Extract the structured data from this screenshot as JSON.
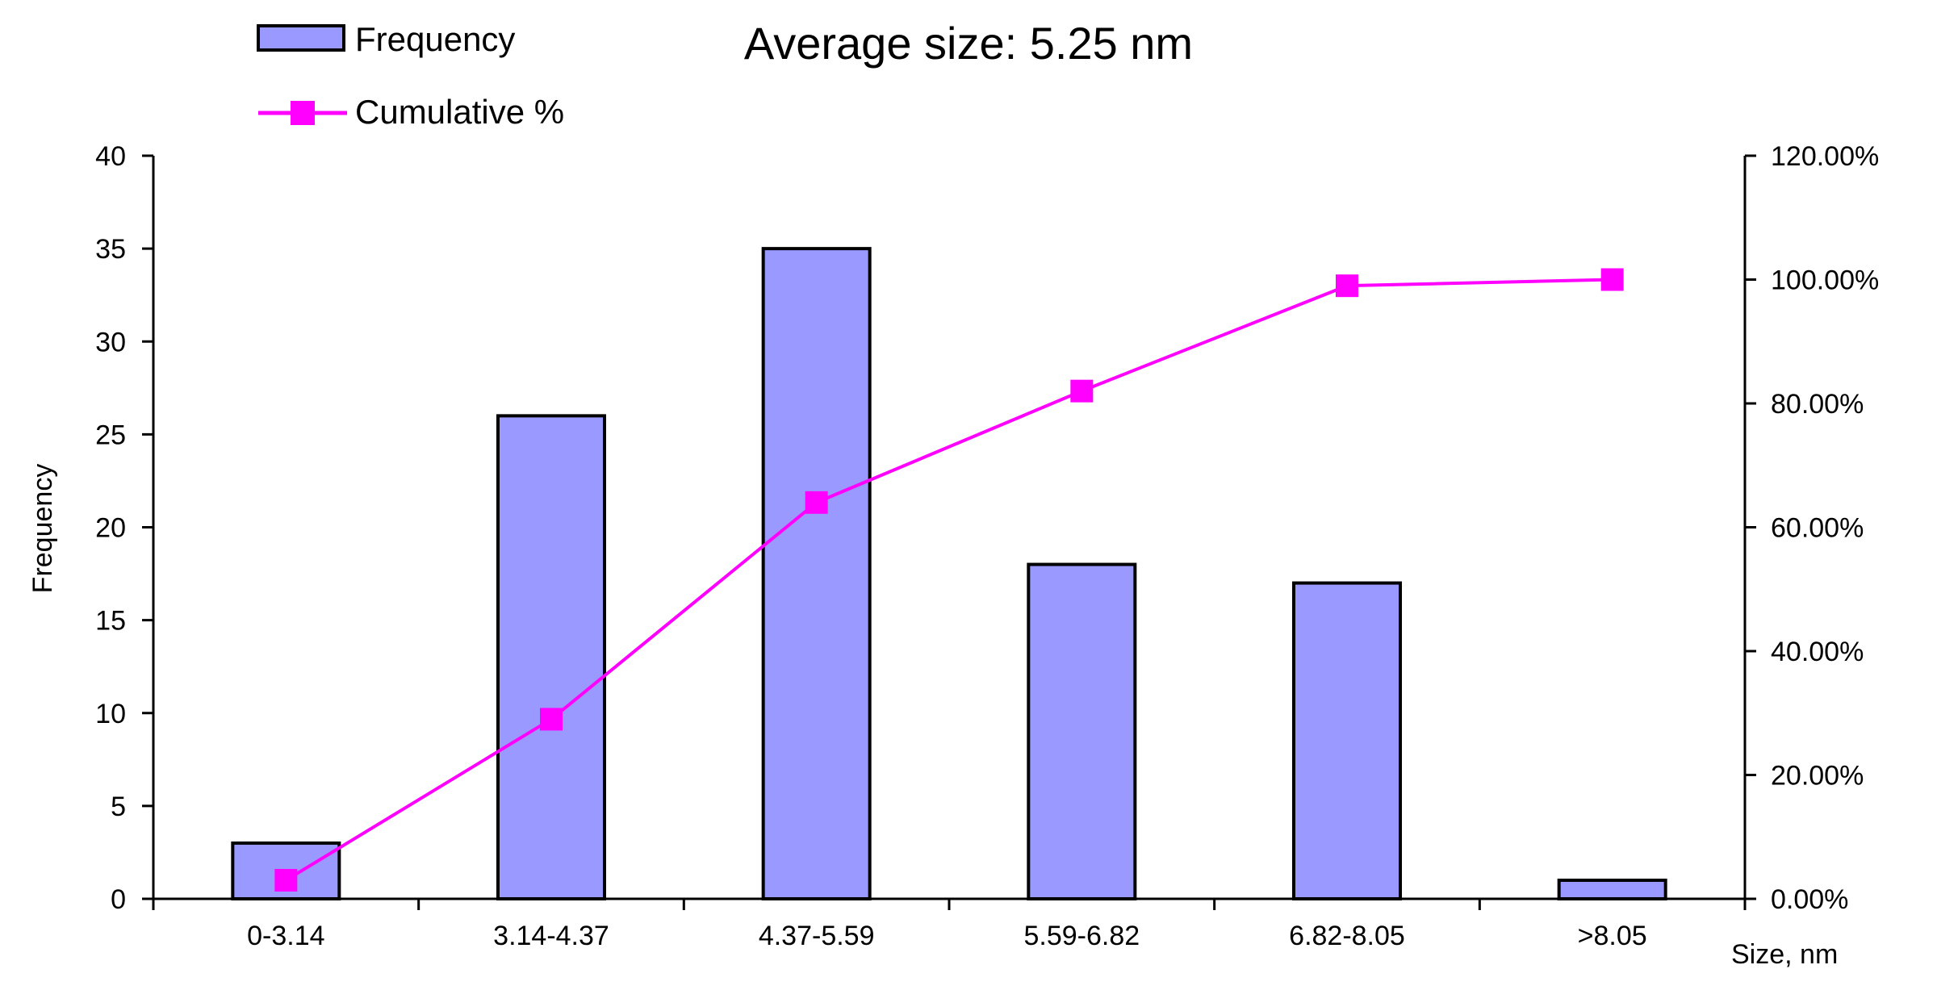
{
  "chart_data": {
    "type": "bar",
    "title": "Average size: 5.25 nm",
    "categories": [
      "0-3.14",
      "3.14-4.37",
      "4.37-5.59",
      "5.59-6.82",
      "6.82-8.05",
      ">8.05"
    ],
    "series": [
      {
        "name": "Frequency",
        "type": "bar",
        "axis": "left",
        "color": "#9999ff",
        "values": [
          3,
          26,
          35,
          18,
          17,
          1
        ]
      },
      {
        "name": "Cumulative %",
        "type": "line",
        "axis": "right",
        "color": "#ff00ff",
        "values": [
          3.0,
          29.0,
          64.0,
          82.0,
          99.0,
          100.0
        ]
      }
    ],
    "ylabel": "Frequency",
    "xlabel": "Size, nm",
    "ylim": [
      0,
      40
    ],
    "y_ticks": [
      0,
      5,
      10,
      15,
      20,
      25,
      30,
      35,
      40
    ],
    "y2lim": [
      0,
      120
    ],
    "y2_ticks": [
      0,
      20,
      40,
      60,
      80,
      100,
      120
    ],
    "y2_tick_labels": [
      "0.00%",
      "20.00%",
      "40.00%",
      "60.00%",
      "80.00%",
      "100.00%",
      "120.00%"
    ],
    "grid": false,
    "legend_position": "top-left"
  }
}
